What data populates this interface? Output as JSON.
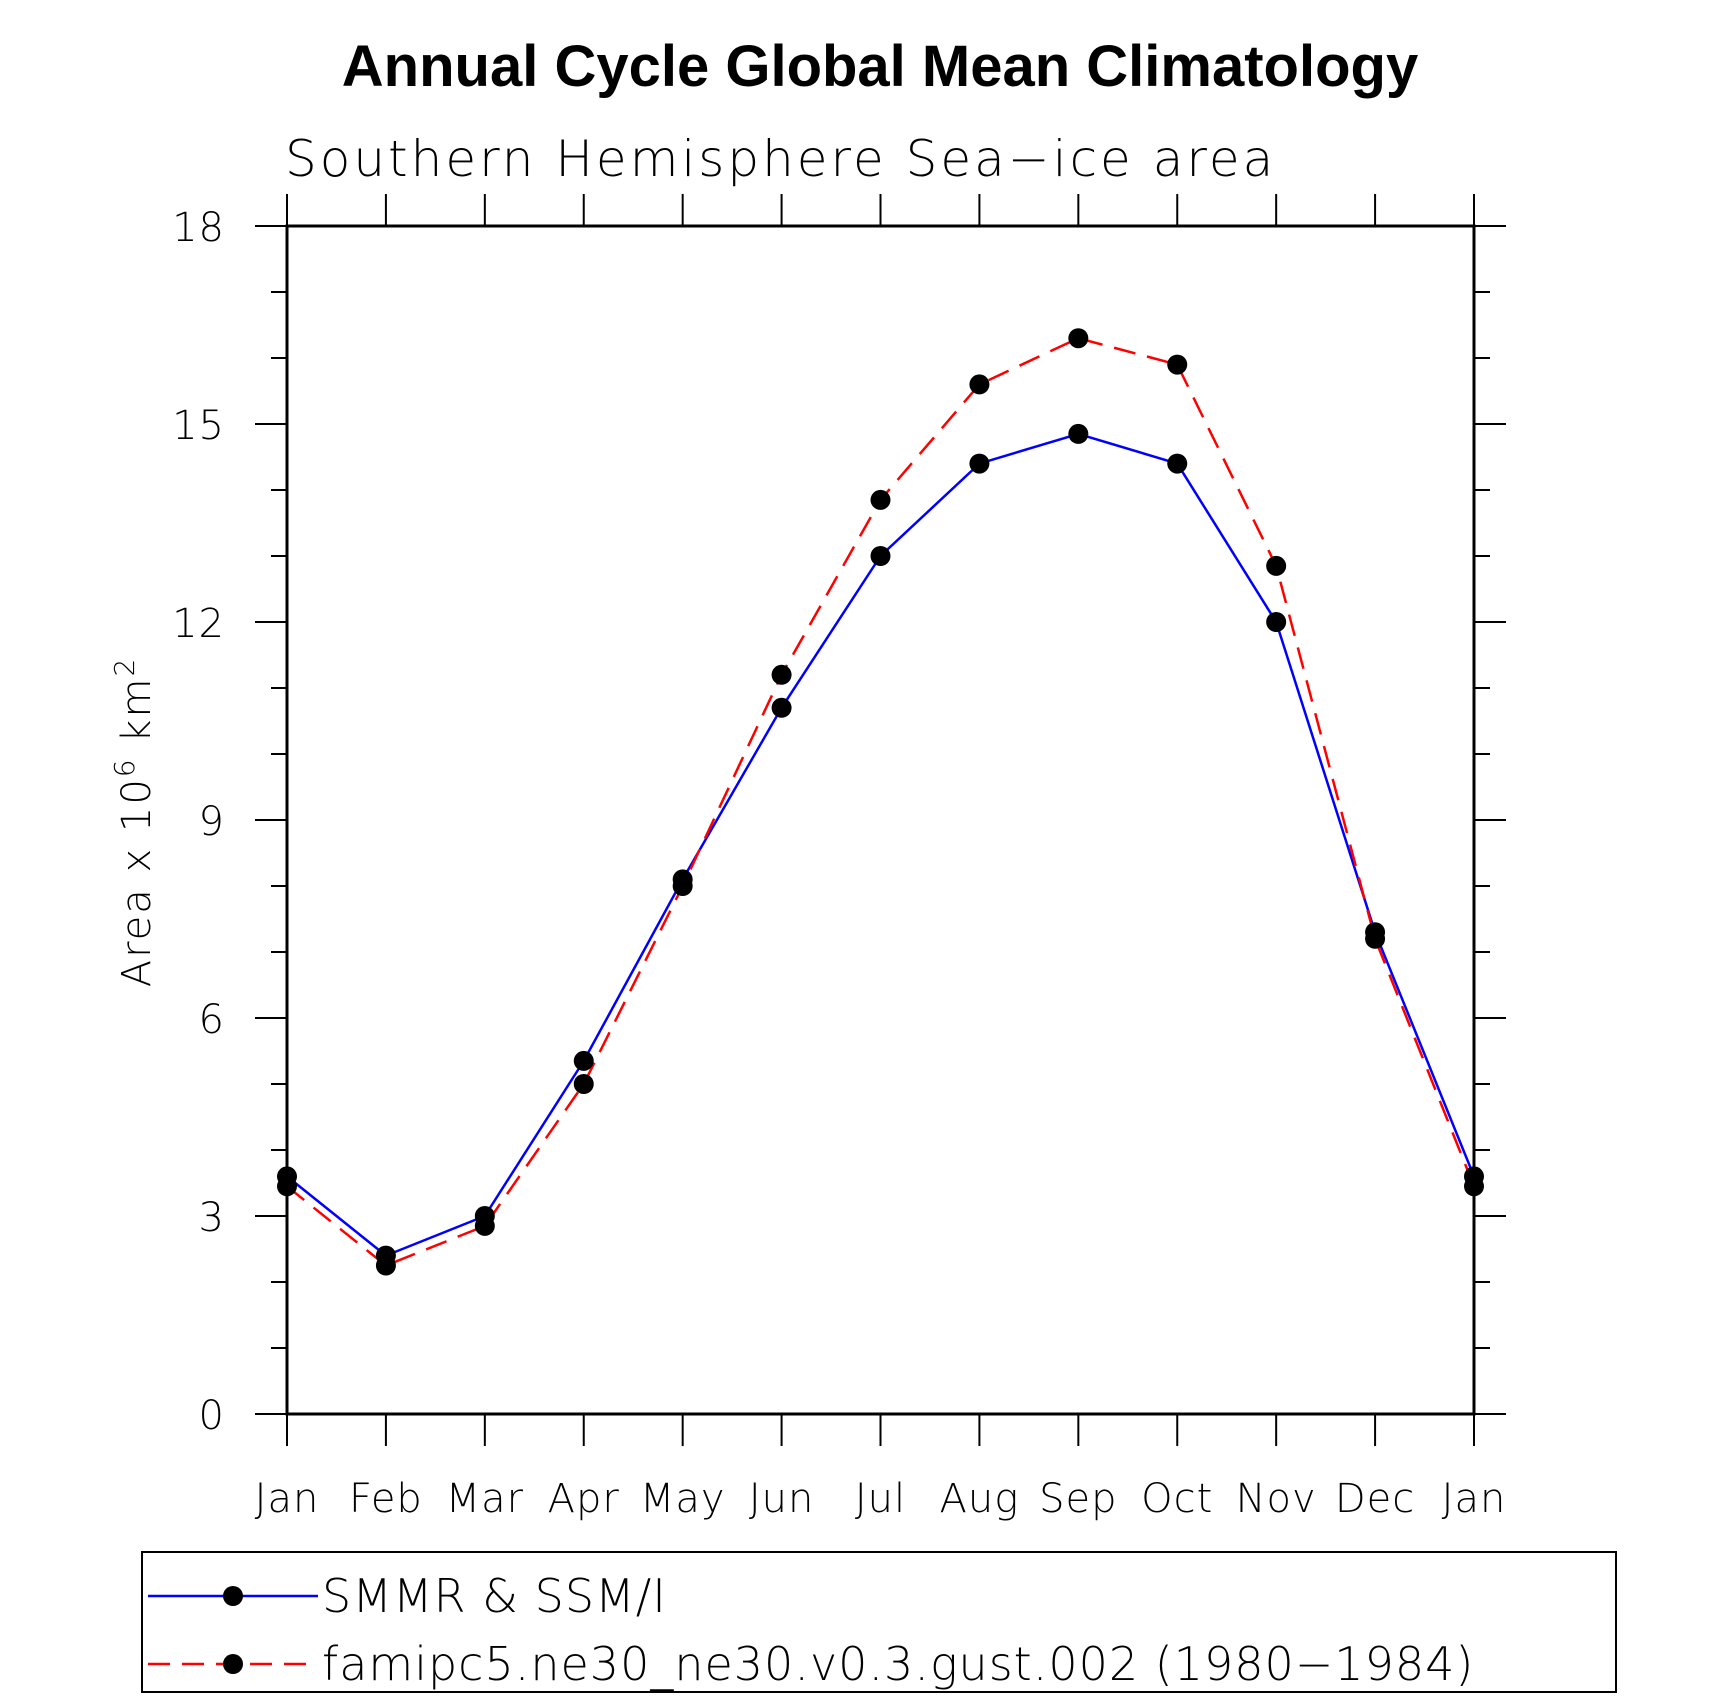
{
  "chart_data": {
    "type": "line",
    "title": "Annual Cycle Global Mean Climatology",
    "subtitle": "Southern Hemisphere Sea−ice area",
    "ylabel": "Area x 10",
    "ylabel_exponent": "6",
    "ylabel_unit": "km",
    "ylabel_unit_exponent": "2",
    "categories": [
      "Jan",
      "Feb",
      "Mar",
      "Apr",
      "May",
      "Jun",
      "Jul",
      "Aug",
      "Sep",
      "Oct",
      "Nov",
      "Dec",
      "Jan"
    ],
    "ylim": [
      0,
      18
    ],
    "yticks": [
      0,
      3,
      6,
      9,
      12,
      15,
      18
    ],
    "yminor_step": 1,
    "legend_position": "bottom",
    "series": [
      {
        "name": "SMMR & SSM/I",
        "color": "#0000ff",
        "dash": "solid",
        "values": [
          3.6,
          2.4,
          3.0,
          5.35,
          8.1,
          10.7,
          13.0,
          14.4,
          14.85,
          14.4,
          12.0,
          7.3,
          3.6
        ]
      },
      {
        "name": "famipc5.ne30_ne30.v0.3.gust.002 (1980−1984)",
        "color": "#ff0000",
        "dash": "dashed",
        "values": [
          3.45,
          2.25,
          2.85,
          5.0,
          8.0,
          11.2,
          13.85,
          15.6,
          16.3,
          15.9,
          12.85,
          7.2,
          3.45
        ]
      }
    ]
  }
}
